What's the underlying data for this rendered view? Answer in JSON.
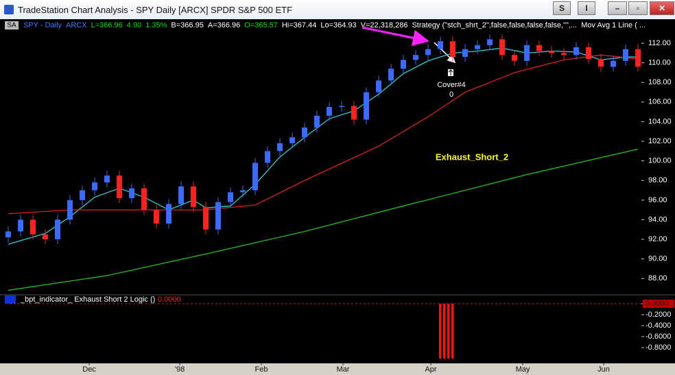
{
  "window": {
    "title": "TradeStation Chart Analysis - SPY Daily [ARCX] SPDR S&P 500 ETF",
    "buttons": [
      "S",
      "I"
    ],
    "tag": "SA"
  },
  "chart_data": [
    {
      "type": "candlestick",
      "header": [
        {
          "text": "SPY - Daily",
          "color": "#3a7bff"
        },
        {
          "text": "ARCX",
          "color": "#3a7bff"
        },
        {
          "text": "L=366.96",
          "color": "#00e000"
        },
        {
          "text": "4.90",
          "color": "#00e000"
        },
        {
          "text": "1.35%",
          "color": "#00e000"
        },
        {
          "text": "B=366.95",
          "color": "#ffffff"
        },
        {
          "text": "A=366.96",
          "color": "#ffffff"
        },
        {
          "text": "O=365.57",
          "color": "#00e000"
        },
        {
          "text": "Hi=367.44",
          "color": "#ffffff"
        },
        {
          "text": "Lo=364.93",
          "color": "#ffffff"
        },
        {
          "text": "V=22,318,286",
          "color": "#ffffff"
        },
        {
          "text": "Strategy (\"stch_shrt_2\",false,false,false,false,\"\",...",
          "color": "#ffffff"
        },
        {
          "text": "Mov Avg 1 Line ( ...",
          "color": "#ffffff"
        }
      ],
      "label": "Exhaust_Short_2",
      "label_color": "#ffff00",
      "annotations": [
        "Cover#4",
        "0"
      ],
      "up_color": "#3a6bff",
      "down_color": "#ff2020",
      "x": [
        0,
        3,
        6,
        9,
        12,
        15,
        18,
        21,
        24,
        27,
        30,
        33,
        36,
        39,
        42,
        45,
        48,
        51,
        54,
        57,
        60,
        63,
        66,
        69,
        72,
        75,
        78,
        81,
        84,
        87,
        90,
        93,
        96,
        99,
        102,
        105,
        108,
        111,
        114,
        117,
        120,
        123,
        126,
        129,
        132,
        135,
        138,
        141,
        144,
        147,
        150,
        153
      ],
      "open": [
        92.2,
        92.8,
        94.0,
        92.5,
        92.0,
        94.0,
        96.0,
        97.0,
        97.8,
        98.5,
        96.2,
        97.2,
        95.0,
        93.6,
        95.6,
        97.4,
        95.3,
        93.0,
        95.8,
        96.8,
        97.0,
        99.8,
        101.0,
        101.8,
        102.4,
        103.4,
        104.6,
        105.5,
        105.6,
        104.2,
        107.0,
        108.2,
        109.4,
        110.3,
        110.8,
        111.4,
        112.2,
        110.6,
        111.4,
        111.8,
        112.4,
        110.8,
        110.2,
        111.8,
        111.2,
        111.0,
        110.8,
        111.6,
        110.4,
        109.6,
        110.2,
        111.4
      ],
      "high": [
        93.3,
        94.5,
        94.5,
        93.0,
        94.5,
        96.5,
        97.5,
        98.3,
        99.0,
        99.0,
        97.7,
        97.7,
        95.5,
        96.1,
        97.9,
        97.9,
        95.8,
        96.3,
        97.3,
        97.5,
        100.3,
        101.5,
        102.3,
        102.9,
        103.9,
        105.1,
        106.0,
        106.1,
        106.1,
        107.5,
        108.7,
        109.9,
        110.8,
        111.3,
        111.9,
        112.7,
        112.7,
        111.9,
        112.3,
        112.9,
        112.9,
        111.3,
        112.3,
        112.3,
        111.7,
        111.5,
        112.1,
        112.1,
        110.9,
        110.7,
        111.9,
        111.9
      ],
      "low": [
        91.7,
        92.3,
        92.0,
        91.5,
        91.5,
        93.5,
        95.5,
        96.5,
        97.3,
        95.7,
        95.7,
        94.5,
        93.1,
        93.1,
        95.1,
        94.8,
        92.5,
        92.5,
        95.3,
        96.3,
        96.5,
        99.3,
        100.5,
        101.3,
        101.9,
        102.9,
        104.1,
        105.0,
        103.7,
        103.7,
        106.5,
        107.7,
        108.9,
        109.8,
        110.3,
        110.9,
        110.1,
        110.1,
        110.9,
        111.3,
        110.3,
        109.7,
        109.7,
        110.7,
        110.5,
        110.3,
        110.3,
        109.9,
        109.1,
        109.1,
        109.7,
        109.1
      ],
      "close": [
        92.8,
        94.0,
        92.5,
        92.0,
        94.0,
        96.0,
        97.0,
        97.8,
        98.5,
        96.2,
        97.2,
        95.0,
        93.6,
        95.6,
        97.4,
        95.3,
        93.0,
        95.8,
        96.8,
        97.0,
        99.8,
        101.0,
        101.8,
        102.4,
        103.4,
        104.6,
        105.5,
        105.6,
        104.2,
        107.0,
        108.2,
        109.4,
        110.3,
        110.8,
        111.4,
        112.2,
        110.6,
        111.4,
        111.8,
        112.4,
        110.8,
        110.2,
        111.8,
        111.2,
        111.0,
        110.8,
        111.6,
        110.4,
        109.6,
        110.2,
        111.4,
        109.6
      ],
      "series": [
        {
          "color": "#22d0e0",
          "x": [
            0,
            9,
            15,
            21,
            27,
            33,
            39,
            45,
            48,
            54,
            60,
            66,
            72,
            78,
            84,
            90,
            96,
            102,
            108,
            114,
            120,
            126,
            132,
            138,
            144,
            150,
            153
          ],
          "values": [
            91.5,
            92.6,
            94.3,
            96.3,
            97.2,
            96.3,
            95.0,
            96.0,
            95.2,
            95.4,
            97.6,
            100.4,
            102.4,
            104.3,
            105.1,
            106.8,
            108.9,
            110.2,
            111.0,
            111.2,
            111.5,
            111.0,
            111.2,
            111.1,
            110.3,
            110.6,
            110.6
          ]
        },
        {
          "color": "#e02020",
          "x": [
            0,
            15,
            33,
            48,
            60,
            72,
            90,
            102,
            111,
            123,
            135,
            144,
            153
          ],
          "values": [
            94.6,
            95.0,
            95.0,
            95.0,
            95.5,
            98.0,
            101.5,
            104.5,
            107.0,
            109.0,
            110.3,
            110.8,
            110.4
          ]
        },
        {
          "color": "#20c020",
          "x": [
            0,
            24,
            48,
            72,
            96,
            126,
            153
          ],
          "values": [
            86.8,
            88.3,
            90.5,
            92.8,
            95.4,
            98.6,
            101.2
          ]
        }
      ],
      "xlim": [
        -0.67,
        153.83
      ],
      "xticks": [
        {
          "value": 19.67,
          "label": "Dec"
        },
        {
          "value": 41.67,
          "label": "'98"
        },
        {
          "value": 61.5,
          "label": "Feb"
        },
        {
          "value": 81.33,
          "label": "Mar"
        },
        {
          "value": 102.67,
          "label": "Apr"
        },
        {
          "value": 125,
          "label": "May"
        },
        {
          "value": 144.67,
          "label": "Jun"
        }
      ],
      "ylim": [
        86.69,
        114.31
      ],
      "yticks": [
        {
          "value": 88,
          "label": "88.00"
        },
        {
          "value": 90,
          "label": "90.00"
        },
        {
          "value": 92,
          "label": "92.00"
        },
        {
          "value": 94,
          "label": "94.00"
        },
        {
          "value": 96,
          "label": "96.00"
        },
        {
          "value": 98,
          "label": "98.00"
        },
        {
          "value": 100,
          "label": "100.00"
        },
        {
          "value": 102,
          "label": "102.00"
        },
        {
          "value": 104,
          "label": "104.00"
        },
        {
          "value": 106,
          "label": "106.00"
        },
        {
          "value": 108,
          "label": "108.00"
        },
        {
          "value": 110,
          "label": "110.00"
        },
        {
          "value": 112,
          "label": "112.00"
        }
      ]
    },
    {
      "type": "bar",
      "title": "_bpt_indicator_  Exhaust Short 2 Logic ()",
      "current": {
        "value": 0,
        "label": "0.0000"
      },
      "color": "#ff1010",
      "x": [
        105,
        106,
        107,
        108
      ],
      "values": [
        -1,
        -1,
        -1,
        -1
      ],
      "ylim": [
        0.075,
        -1.0625
      ],
      "yticks": [
        {
          "value": 0,
          "label": "0.0000"
        },
        {
          "value": -0.2,
          "label": "-0.2000"
        },
        {
          "value": -0.4,
          "label": "-0.4000"
        },
        {
          "value": -0.6,
          "label": "-0.6000"
        },
        {
          "value": -0.8,
          "label": "-0.8000"
        }
      ]
    }
  ]
}
